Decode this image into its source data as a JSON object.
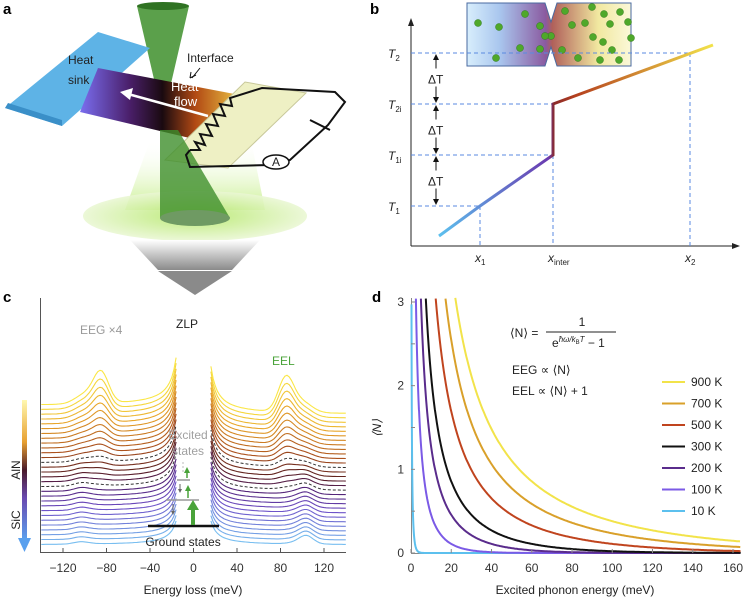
{
  "panels": {
    "a": {
      "label": "a",
      "heat_sink": [
        "Heat",
        "sink"
      ],
      "interface": "Interface",
      "heat_flow": [
        "Heat",
        "flow"
      ],
      "ammeter": "A",
      "colors": {
        "heat_sink": "#5eb3e6",
        "beam": "#3e8f2c",
        "glow": "#b5e86a",
        "heater": "#eef0c4"
      }
    },
    "b": {
      "label": "b",
      "y_labels": [
        "T2",
        "T2i",
        "T1i",
        "T1"
      ],
      "y_label_main": [
        "T",
        "T",
        "T",
        "T"
      ],
      "y_label_sub": [
        "2",
        "2i",
        "1i",
        "1"
      ],
      "delta": "ΔT",
      "x_labels_main": [
        "x",
        "x",
        "x"
      ],
      "x_labels_sub": [
        "1",
        "inter",
        "2"
      ]
    },
    "c": {
      "label": "c"
    },
    "d": {
      "label": "d"
    }
  },
  "chart_data": [
    {
      "panel": "c",
      "type": "line",
      "xlabel": "Energy loss (meV)",
      "xlim": [
        -140,
        140
      ],
      "x_ticks": [
        -120,
        -80,
        -40,
        0,
        40,
        80,
        120
      ],
      "curve_count": 30,
      "annotations": {
        "eeg": "EEG ×4",
        "zlp": "ZLP",
        "eel": "EEL",
        "excited": [
          "Excited",
          "states"
        ],
        "ground": "Ground states"
      },
      "gradient_axis": {
        "top": "AlN",
        "bottom": "SiC"
      },
      "peaks_meV": {
        "AlN": 85,
        "SiC": 105
      },
      "colors": {
        "eel": "#4aa33a",
        "eeg": "#9a9a9a"
      }
    },
    {
      "panel": "d",
      "type": "line",
      "xlabel": "Excited phonon energy (meV)",
      "ylabel": "⟨N⟩",
      "xlim": [
        0,
        160
      ],
      "ylim": [
        0,
        3
      ],
      "x_ticks": [
        0,
        20,
        40,
        60,
        80,
        100,
        120,
        140,
        160
      ],
      "y_ticks": [
        0,
        1,
        2,
        3
      ],
      "formula": {
        "lhs": "⟨N⟩ =",
        "num": "1",
        "den": "e^(ħω/kBT) − 1",
        "den_base": "e",
        "den_exp": "ħω/k",
        "den_exp_sub": "B",
        "den_exp_T": "T",
        "den_tail": " − 1"
      },
      "relations": [
        "EEG ∝ ⟨N⟩",
        "EEL ∝ ⟨N⟩ + 1"
      ],
      "series": [
        {
          "name": "900 K",
          "temperature_K": 900,
          "color": "#f2e34a"
        },
        {
          "name": "700 K",
          "temperature_K": 700,
          "color": "#d9a02a"
        },
        {
          "name": "500 K",
          "temperature_K": 500,
          "color": "#c0441e"
        },
        {
          "name": "300 K",
          "temperature_K": 300,
          "color": "#111111"
        },
        {
          "name": "200 K",
          "temperature_K": 200,
          "color": "#5a2c8c"
        },
        {
          "name": "100 K",
          "temperature_K": 100,
          "color": "#7b5ae6"
        },
        {
          "name": "10 K",
          "temperature_K": 10,
          "color": "#5cc0ee"
        }
      ]
    }
  ]
}
